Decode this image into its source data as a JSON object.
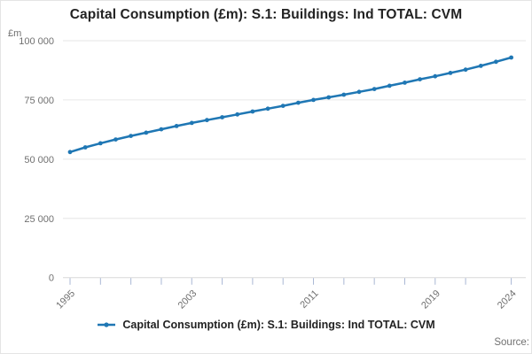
{
  "page": {
    "source_label": "Source:"
  },
  "legend": {
    "label": "Capital Consumption (£m): S.1: Buildings: Ind TOTAL: CVM"
  },
  "chart_data": {
    "type": "line",
    "title": "Capital Consumption (£m): S.1: Buildings: Ind TOTAL: CVM",
    "unit_label": "£m",
    "xlim": [
      1995,
      2024
    ],
    "ylim": [
      0,
      100000
    ],
    "grid": "horizontal",
    "legend_position": "bottom",
    "y_ticks": [
      0,
      25000,
      50000,
      75000,
      100000
    ],
    "y_tick_labels": [
      "0",
      "25 000",
      "50 000",
      "75 000",
      "100 000"
    ],
    "x_tick_years": [
      1995,
      1997,
      1999,
      2001,
      2003,
      2005,
      2007,
      2009,
      2011,
      2013,
      2015,
      2017,
      2019,
      2021,
      2024
    ],
    "x_tick_labels": [
      "1995",
      "2003",
      "2011",
      "2019",
      "2024"
    ],
    "series": [
      {
        "name": "Capital Consumption (£m): S.1: Buildings: Ind TOTAL: CVM",
        "color": "#1f77b4",
        "x": [
          1995,
          1996,
          1997,
          1998,
          1999,
          2000,
          2001,
          2002,
          2003,
          2004,
          2005,
          2006,
          2007,
          2008,
          2009,
          2010,
          2011,
          2012,
          2013,
          2014,
          2015,
          2016,
          2017,
          2018,
          2019,
          2020,
          2021,
          2022,
          2023,
          2024
        ],
        "values": [
          53000,
          55000,
          56700,
          58300,
          59800,
          61200,
          62600,
          64000,
          65300,
          66500,
          67700,
          68900,
          70100,
          71300,
          72500,
          73800,
          75000,
          76100,
          77200,
          78400,
          79600,
          81000,
          82300,
          83700,
          85000,
          86400,
          87800,
          89400,
          91100,
          92900
        ]
      }
    ],
    "colors": {
      "line": "#1f77b4",
      "grid": "#e6e6e6",
      "axis": "#d9d9d9",
      "tick": "#a9b7d4",
      "label_text": "#707070",
      "title_text": "#222222"
    }
  }
}
